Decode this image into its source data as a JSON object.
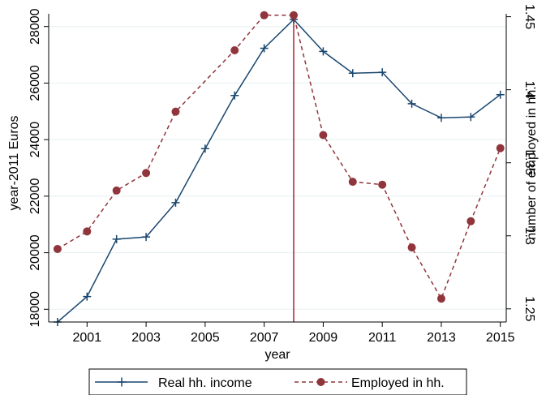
{
  "chart_data": {
    "type": "line",
    "xlabel": "year",
    "ylabel_left": "year-2011 Euros",
    "ylabel_right": "number of employed in hh.",
    "x": [
      2000,
      2001,
      2002,
      2003,
      2004,
      2005,
      2006,
      2007,
      2008,
      2009,
      2010,
      2011,
      2012,
      2013,
      2014,
      2015
    ],
    "xlim": [
      1999.7,
      2015.2
    ],
    "xticks": [
      "2001",
      "2003",
      "2005",
      "2007",
      "2009",
      "2011",
      "2013",
      "2015"
    ],
    "ylim_left": [
      17550,
      28450
    ],
    "yticks_left": [
      "18000",
      "20000",
      "22000",
      "24000",
      "26000",
      "28000"
    ],
    "ylim_right": [
      1.241,
      1.452
    ],
    "yticks_right": [
      "1.25",
      "1.3",
      "1.35",
      "1.4",
      "1.45"
    ],
    "vline_x": 2008,
    "grid": "horizontal",
    "legend_position": "bottom",
    "series": [
      {
        "name": "Real hh. income",
        "axis": "left",
        "style": "solid",
        "marker": "plus",
        "color": "#1a476f",
        "x": [
          2000,
          2001,
          2002,
          2003,
          2004,
          2005,
          2006,
          2007,
          2008,
          2009,
          2010,
          2011,
          2012,
          2013,
          2014,
          2015
        ],
        "values": [
          17550,
          18450,
          20480,
          20560,
          21770,
          23680,
          25560,
          27230,
          28250,
          27120,
          26350,
          26380,
          25270,
          24770,
          24800,
          25590
        ]
      },
      {
        "name": "Employed in hh.",
        "axis": "right",
        "style": "dashed",
        "marker": "circle",
        "color": "#90353b",
        "x": [
          2000,
          2001,
          2002,
          2004,
          2003,
          2006,
          2007,
          2008,
          2009,
          2010,
          2011,
          2012,
          2013,
          2014,
          2015
        ],
        "values": [
          1.291,
          1.303,
          1.331,
          1.385,
          1.343,
          1.427,
          1.451,
          1.451,
          1.369,
          1.337,
          1.335,
          1.292,
          1.257,
          1.31,
          1.36
        ]
      }
    ],
    "vline_color": "#b41e2d"
  }
}
